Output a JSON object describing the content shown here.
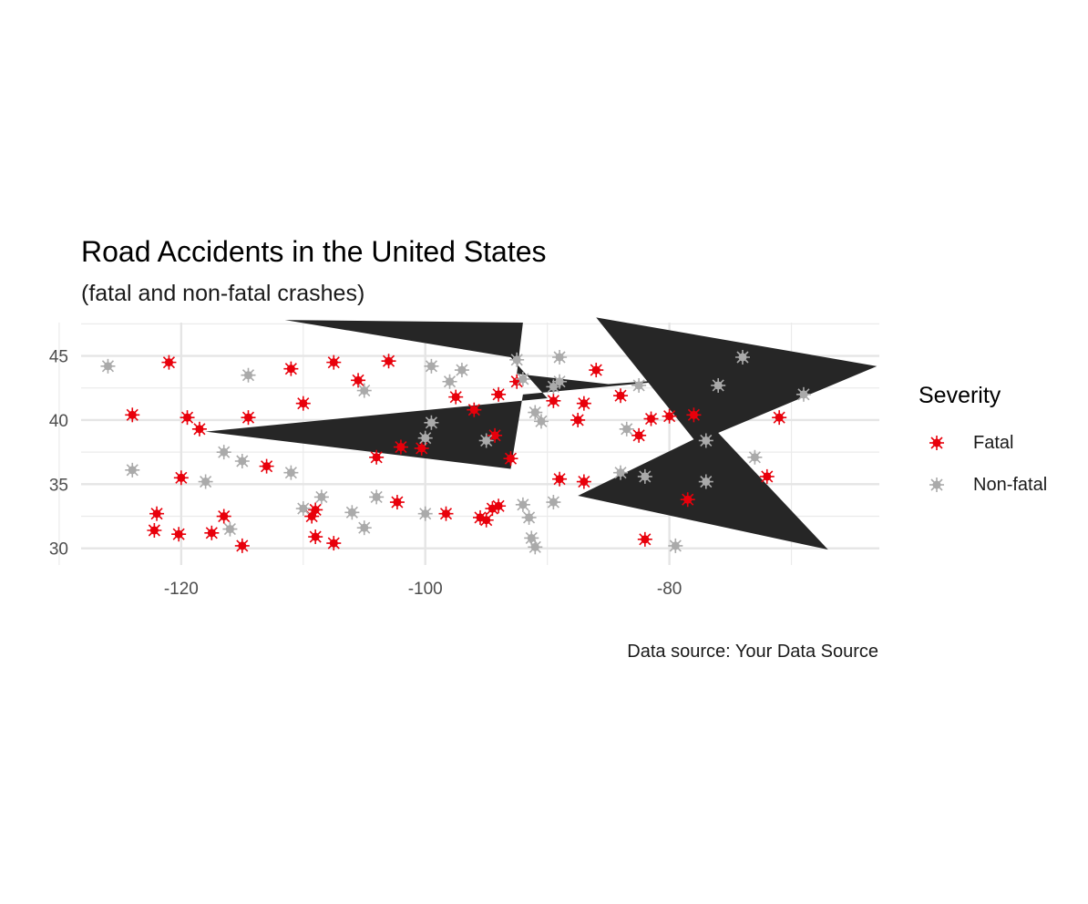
{
  "chart_data": {
    "type": "scatter",
    "title": "Road Accidents in the United States",
    "subtitle": "(fatal and non-fatal crashes)",
    "caption": "Data source: Your Data Source",
    "xlabel": "",
    "ylabel": "",
    "xlim": [
      -128.2,
      -62.8
    ],
    "ylim": [
      28.7,
      47.6
    ],
    "x_ticks": [
      -120,
      -100,
      -80
    ],
    "y_ticks": [
      30,
      35,
      40,
      45
    ],
    "grid": true,
    "legend": {
      "title": "Severity",
      "position": "right"
    },
    "series": [
      {
        "name": "Fatal",
        "color": "#e8000b",
        "points": [
          [
            -121.0,
            44.5
          ],
          [
            -124.0,
            40.4
          ],
          [
            -119.5,
            40.2
          ],
          [
            -118.5,
            39.3
          ],
          [
            -114.5,
            40.2
          ],
          [
            -111.0,
            44.0
          ],
          [
            -110.0,
            41.3
          ],
          [
            -107.5,
            44.5
          ],
          [
            -105.5,
            43.1
          ],
          [
            -103.0,
            44.6
          ],
          [
            -104.0,
            37.1
          ],
          [
            -102.0,
            37.9
          ],
          [
            -100.3,
            37.8
          ],
          [
            -97.5,
            41.8
          ],
          [
            -96.0,
            40.8
          ],
          [
            -94.0,
            42.0
          ],
          [
            -92.5,
            43.0
          ],
          [
            -94.3,
            38.8
          ],
          [
            -93.0,
            37.0
          ],
          [
            -89.5,
            41.5
          ],
          [
            -87.5,
            40.0
          ],
          [
            -87.0,
            41.3
          ],
          [
            -86.0,
            43.9
          ],
          [
            -89.0,
            35.4
          ],
          [
            -87.0,
            35.2
          ],
          [
            -84.0,
            41.9
          ],
          [
            -82.5,
            38.8
          ],
          [
            -81.5,
            40.1
          ],
          [
            -80.0,
            40.3
          ],
          [
            -78.0,
            40.4
          ],
          [
            -78.5,
            33.8
          ],
          [
            -72.0,
            35.6
          ],
          [
            -71.0,
            40.2
          ],
          [
            -82.0,
            30.7
          ],
          [
            -113.0,
            36.4
          ],
          [
            -120.0,
            35.5
          ],
          [
            -122.0,
            32.7
          ],
          [
            -122.2,
            31.4
          ],
          [
            -120.2,
            31.1
          ],
          [
            -117.5,
            31.2
          ],
          [
            -116.5,
            32.5
          ],
          [
            -115.0,
            30.2
          ],
          [
            -109.0,
            33.0
          ],
          [
            -109.3,
            32.5
          ],
          [
            -109.0,
            30.9
          ],
          [
            -107.5,
            30.4
          ],
          [
            -102.3,
            33.6
          ],
          [
            -98.3,
            32.7
          ],
          [
            -95.5,
            32.4
          ],
          [
            -95.0,
            32.2
          ],
          [
            -94.5,
            33.1
          ],
          [
            -94.0,
            33.3
          ]
        ]
      },
      {
        "name": "Non-fatal",
        "color": "#aaaaaa",
        "points": [
          [
            -126.0,
            44.2
          ],
          [
            -124.0,
            36.1
          ],
          [
            -114.5,
            43.5
          ],
          [
            -116.5,
            37.5
          ],
          [
            -115.0,
            36.8
          ],
          [
            -118.0,
            35.2
          ],
          [
            -111.0,
            35.9
          ],
          [
            -116.0,
            31.5
          ],
          [
            -110.0,
            33.1
          ],
          [
            -108.5,
            34.0
          ],
          [
            -106.0,
            32.8
          ],
          [
            -105.0,
            31.6
          ],
          [
            -105.0,
            42.3
          ],
          [
            -104.0,
            34.0
          ],
          [
            -100.0,
            32.7
          ],
          [
            -99.5,
            44.2
          ],
          [
            -99.5,
            39.8
          ],
          [
            -100.0,
            38.6
          ],
          [
            -98.0,
            43.0
          ],
          [
            -97.0,
            43.9
          ],
          [
            -95.0,
            38.4
          ],
          [
            -92.5,
            44.7
          ],
          [
            -92.0,
            43.2
          ],
          [
            -91.0,
            40.6
          ],
          [
            -90.5,
            39.9
          ],
          [
            -89.5,
            42.6
          ],
          [
            -89.0,
            43.0
          ],
          [
            -89.0,
            44.9
          ],
          [
            -92.0,
            33.4
          ],
          [
            -91.5,
            32.4
          ],
          [
            -91.3,
            30.8
          ],
          [
            -91.0,
            30.1
          ],
          [
            -89.5,
            33.6
          ],
          [
            -84.0,
            35.9
          ],
          [
            -83.5,
            39.3
          ],
          [
            -82.5,
            42.7
          ],
          [
            -82.0,
            35.6
          ],
          [
            -77.0,
            38.4
          ],
          [
            -76.0,
            42.7
          ],
          [
            -77.0,
            35.2
          ],
          [
            -74.0,
            44.9
          ],
          [
            -73.0,
            37.1
          ],
          [
            -69.0,
            42.0
          ],
          [
            -79.5,
            30.2
          ]
        ]
      }
    ],
    "annotations": {
      "type": "arrow-shapes",
      "color": "#262626",
      "shapes": [
        [
          [
            -111.5,
            47.8
          ],
          [
            -92.0,
            47.6
          ],
          [
            -92.5,
            43.6
          ],
          [
            -85.0,
            42.8
          ],
          [
            -75.0,
            43.5
          ],
          [
            -92.0,
            42.0
          ],
          [
            -93.0,
            36.2
          ],
          [
            -118.0,
            39.1
          ],
          [
            -90.0,
            41.7
          ],
          [
            -93.0,
            44.9
          ]
        ],
        [
          [
            -86.0,
            48.0
          ],
          [
            -63.0,
            44.2
          ],
          [
            -76.0,
            39.0
          ],
          [
            -67.0,
            29.9
          ],
          [
            -87.5,
            34.1
          ],
          [
            -78.0,
            38.5
          ]
        ]
      ]
    }
  }
}
